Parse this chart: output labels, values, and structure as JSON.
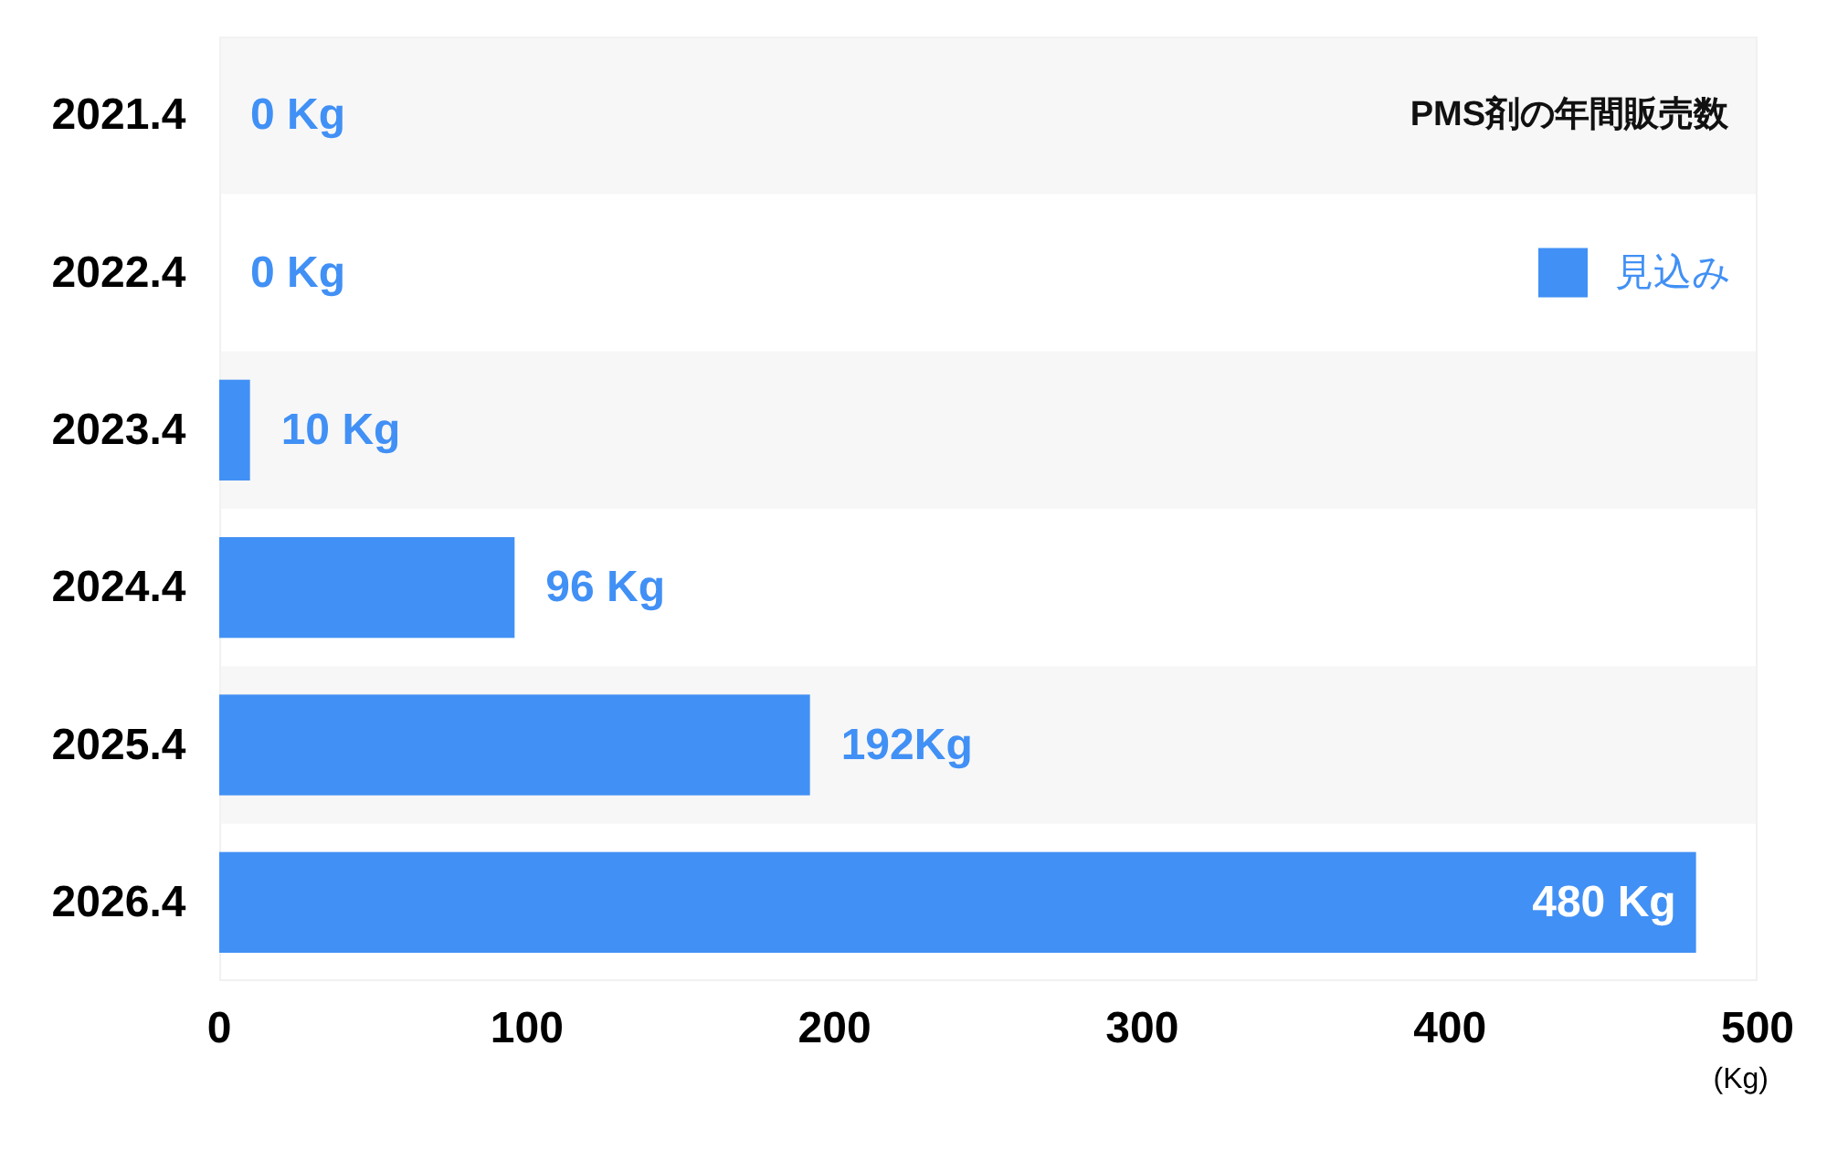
{
  "chart_data": {
    "type": "bar",
    "orientation": "horizontal",
    "title": "PMS剤の年間販売数",
    "xlabel": "(Kg)",
    "categories": [
      "2021.4",
      "2022.4",
      "2023.4",
      "2024.4",
      "2025.4",
      "2026.4"
    ],
    "series": [
      {
        "name": "見込み",
        "color": "#4190f5",
        "values": [
          0,
          0,
          10,
          96,
          192,
          480
        ],
        "value_labels": [
          "0 Kg",
          "0 Kg",
          "10 Kg",
          "96 Kg",
          "192Kg",
          "480 Kg"
        ]
      }
    ],
    "xlim": [
      0,
      500
    ],
    "xticks": [
      0,
      100,
      200,
      300,
      400,
      500
    ],
    "legend": "top right",
    "bands": [
      {
        "axis": "y",
        "from": "2021.4",
        "to": "2021.4",
        "color": "#f7f7f7"
      },
      {
        "axis": "y",
        "from": "2023.4",
        "to": "2023.4",
        "color": "#f7f7f7"
      },
      {
        "axis": "y",
        "from": "2025.4",
        "to": "2025.4",
        "color": "#f7f7f7"
      }
    ]
  }
}
